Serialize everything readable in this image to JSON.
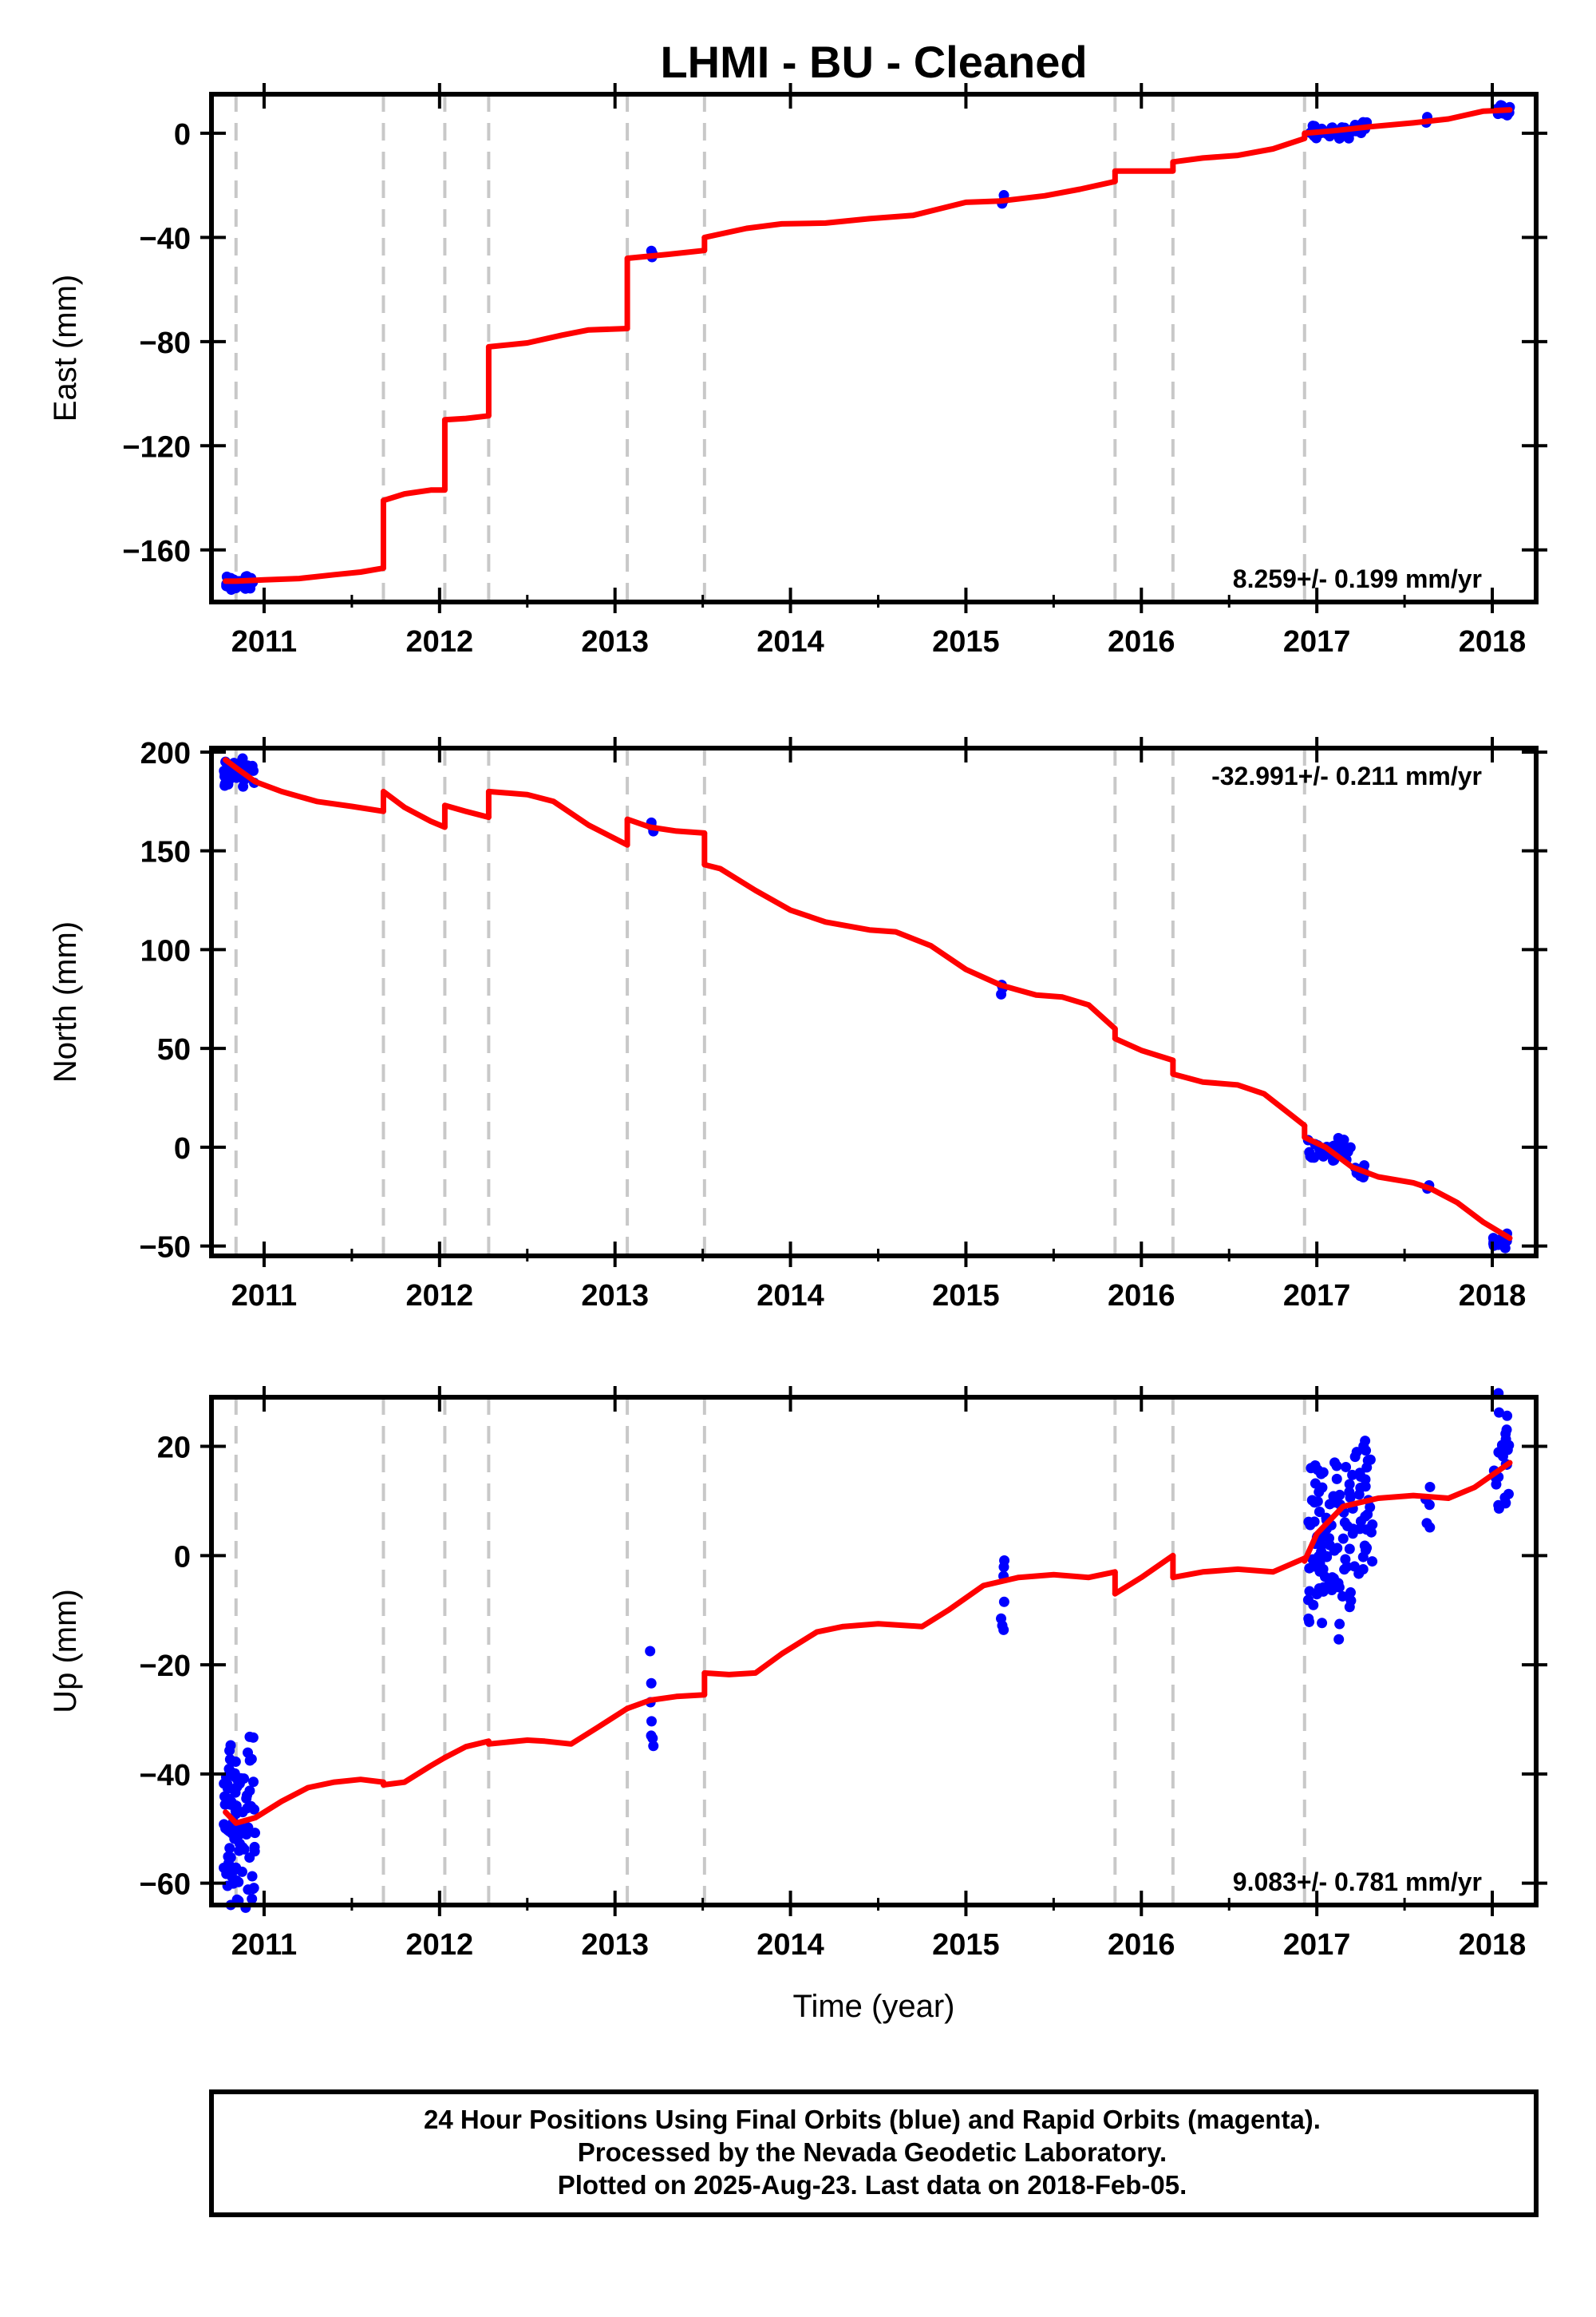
{
  "title": "LHMI  - BU - Cleaned",
  "colors": {
    "final_orbits": "#0000ff",
    "model": "#ff0000",
    "event_lines": "#c8c8c8",
    "frame": "#000000"
  },
  "footer": {
    "line1": "24 Hour Positions Using Final Orbits (blue) and Rapid Orbits (magenta).",
    "line2": "Processed by the Nevada Geodetic Laboratory.",
    "line3": "Plotted on 2025-Aug-23. Last data on 2018-Feb-05."
  },
  "chart_data": [
    {
      "type": "scatter",
      "panel": "east",
      "ylabel": "East (mm)",
      "xlabel": "",
      "xlim": [
        2010.7,
        2018.25
      ],
      "ylim": [
        -180,
        15
      ],
      "yticks": [
        0,
        -40,
        -80,
        -120,
        -160
      ],
      "xticks": [
        2011,
        2012,
        2013,
        2014,
        2015,
        2016,
        2017,
        2018
      ],
      "rate_text": "8.259+/- 0.199 mm/yr",
      "rate_position": "bottom-right",
      "event_lines": [
        2010.84,
        2011.68,
        2012.03,
        2012.28,
        2013.07,
        2013.51,
        2015.85,
        2016.18,
        2016.93
      ],
      "model_segments": [
        [
          [
            2010.78,
            -172
          ],
          [
            2010.84,
            -172
          ],
          [
            2011.0,
            -171.5
          ],
          [
            2011.2,
            -171
          ],
          [
            2011.4,
            -169.5
          ],
          [
            2011.55,
            -168.5
          ],
          [
            2011.68,
            -167
          ]
        ],
        [
          [
            2011.68,
            -141
          ],
          [
            2011.8,
            -138.5
          ],
          [
            2011.95,
            -137
          ],
          [
            2012.03,
            -137
          ]
        ],
        [
          [
            2012.03,
            -110
          ],
          [
            2012.15,
            -109.5
          ],
          [
            2012.28,
            -108.5
          ]
        ],
        [
          [
            2012.28,
            -82
          ],
          [
            2012.5,
            -80.5
          ],
          [
            2012.7,
            -77.5
          ],
          [
            2012.85,
            -75.5
          ],
          [
            2013.07,
            -75
          ]
        ],
        [
          [
            2013.07,
            -48
          ],
          [
            2013.3,
            -46.5
          ],
          [
            2013.51,
            -45
          ]
        ],
        [
          [
            2013.51,
            -40
          ],
          [
            2013.75,
            -36.5
          ],
          [
            2013.95,
            -34.8
          ],
          [
            2014.2,
            -34.5
          ],
          [
            2014.45,
            -32.8
          ],
          [
            2014.7,
            -31.5
          ],
          [
            2014.85,
            -29
          ],
          [
            2015.0,
            -26.5
          ],
          [
            2015.2,
            -26
          ],
          [
            2015.45,
            -24
          ],
          [
            2015.65,
            -21.5
          ],
          [
            2015.85,
            -18.5
          ]
        ],
        [
          [
            2015.85,
            -14.5
          ],
          [
            2016.18,
            -14.5
          ]
        ],
        [
          [
            2016.18,
            -11
          ],
          [
            2016.35,
            -9.5
          ],
          [
            2016.55,
            -8.5
          ],
          [
            2016.75,
            -6
          ],
          [
            2016.93,
            -2
          ]
        ],
        [
          [
            2016.93,
            0
          ],
          [
            2017.1,
            1
          ],
          [
            2017.3,
            2.5
          ],
          [
            2017.55,
            4
          ],
          [
            2017.75,
            5.5
          ],
          [
            2017.95,
            8.5
          ],
          [
            2018.1,
            9
          ]
        ]
      ],
      "point_clusters": [
        {
          "x": [
            2010.77,
            2010.94
          ],
          "y": [
            -175,
            -170
          ],
          "n": 30
        },
        {
          "x": [
            2013.2,
            2013.22
          ],
          "y": [
            -48,
            -45
          ],
          "n": 3
        },
        {
          "x": [
            2015.2,
            2015.22
          ],
          "y": [
            -27,
            -24
          ],
          "n": 3
        },
        {
          "x": [
            2016.95,
            2017.2
          ],
          "y": [
            -2,
            3
          ],
          "n": 30
        },
        {
          "x": [
            2017.2,
            2017.32
          ],
          "y": [
            0,
            5
          ],
          "n": 10
        },
        {
          "x": [
            2017.62,
            2017.65
          ],
          "y": [
            4,
            6
          ],
          "n": 2
        },
        {
          "x": [
            2018.0,
            2018.1
          ],
          "y": [
            7,
            11
          ],
          "n": 12
        }
      ]
    },
    {
      "type": "scatter",
      "panel": "north",
      "ylabel": "North (mm)",
      "xlabel": "",
      "xlim": [
        2010.7,
        2018.25
      ],
      "ylim": [
        -55,
        202
      ],
      "yticks": [
        200,
        150,
        100,
        50,
        0,
        -50
      ],
      "xticks": [
        2011,
        2012,
        2013,
        2014,
        2015,
        2016,
        2017,
        2018
      ],
      "rate_text": "-32.991+/- 0.211 mm/yr",
      "rate_position": "top-right",
      "event_lines": [
        2010.84,
        2011.68,
        2012.03,
        2012.28,
        2013.07,
        2013.51,
        2015.85,
        2016.18,
        2016.93
      ],
      "model_segments": [
        [
          [
            2010.78,
            196
          ],
          [
            2010.84,
            192
          ],
          [
            2010.95,
            185
          ],
          [
            2011.1,
            180
          ],
          [
            2011.3,
            175
          ],
          [
            2011.5,
            172.5
          ],
          [
            2011.68,
            170
          ]
        ],
        [
          [
            2011.68,
            180
          ],
          [
            2011.8,
            172
          ],
          [
            2011.95,
            165
          ],
          [
            2012.03,
            162
          ]
        ],
        [
          [
            2012.03,
            173
          ],
          [
            2012.15,
            170
          ],
          [
            2012.28,
            167
          ]
        ],
        [
          [
            2012.28,
            180
          ],
          [
            2012.5,
            178.5
          ],
          [
            2012.65,
            175
          ],
          [
            2012.85,
            163
          ],
          [
            2013.07,
            153
          ]
        ],
        [
          [
            2013.07,
            166
          ],
          [
            2013.2,
            162
          ],
          [
            2013.35,
            160
          ],
          [
            2013.51,
            159
          ]
        ],
        [
          [
            2013.51,
            143
          ],
          [
            2013.6,
            141
          ],
          [
            2013.8,
            130
          ],
          [
            2014.0,
            120
          ],
          [
            2014.2,
            114
          ],
          [
            2014.45,
            110
          ],
          [
            2014.6,
            109
          ],
          [
            2014.8,
            102
          ],
          [
            2015.0,
            90
          ],
          [
            2015.2,
            82
          ],
          [
            2015.4,
            77
          ],
          [
            2015.55,
            76
          ],
          [
            2015.7,
            72
          ],
          [
            2015.85,
            60
          ]
        ],
        [
          [
            2015.85,
            55
          ],
          [
            2016.0,
            49
          ],
          [
            2016.18,
            44
          ]
        ],
        [
          [
            2016.18,
            37
          ],
          [
            2016.35,
            33
          ],
          [
            2016.55,
            31.5
          ],
          [
            2016.7,
            27
          ],
          [
            2016.93,
            11
          ]
        ],
        [
          [
            2016.93,
            5
          ],
          [
            2017.05,
            0
          ],
          [
            2017.2,
            -10
          ],
          [
            2017.35,
            -15
          ],
          [
            2017.55,
            -18
          ],
          [
            2017.65,
            -21
          ],
          [
            2017.8,
            -28
          ],
          [
            2017.95,
            -38
          ],
          [
            2018.1,
            -46
          ]
        ]
      ],
      "point_clusters": [
        {
          "x": [
            2010.77,
            2010.95
          ],
          "y": [
            196,
            183
          ],
          "n": 30
        },
        {
          "x": [
            2013.2,
            2013.22
          ],
          "y": [
            160,
            165
          ],
          "n": 3
        },
        {
          "x": [
            2015.2,
            2015.22
          ],
          "y": [
            78,
            83
          ],
          "n": 3
        },
        {
          "x": [
            2016.95,
            2017.2
          ],
          "y": [
            3,
            -7
          ],
          "n": 30
        },
        {
          "x": [
            2017.2,
            2017.32
          ],
          "y": [
            -10,
            -15
          ],
          "n": 10
        },
        {
          "x": [
            2017.62,
            2017.65
          ],
          "y": [
            -19,
            -21
          ],
          "n": 2
        },
        {
          "x": [
            2018.0,
            2018.1
          ],
          "y": [
            -44,
            -50
          ],
          "n": 12
        }
      ]
    },
    {
      "type": "scatter",
      "panel": "up",
      "ylabel": "Up (mm)",
      "xlabel": "Time (year)",
      "xlim": [
        2010.7,
        2018.25
      ],
      "ylim": [
        -64,
        29
      ],
      "yticks": [
        20,
        0,
        -20,
        -40,
        -60
      ],
      "xticks": [
        2011,
        2012,
        2013,
        2014,
        2015,
        2016,
        2017,
        2018
      ],
      "rate_text": "9.083+/- 0.781 mm/yr",
      "rate_position": "bottom-right",
      "event_lines": [
        2010.84,
        2011.68,
        2012.03,
        2012.28,
        2013.07,
        2013.51,
        2015.85,
        2016.18,
        2016.93
      ],
      "model_segments": [
        [
          [
            2010.78,
            -47
          ],
          [
            2010.84,
            -49
          ],
          [
            2010.95,
            -48
          ],
          [
            2011.1,
            -45
          ],
          [
            2011.25,
            -42.5
          ],
          [
            2011.4,
            -41.5
          ],
          [
            2011.55,
            -41
          ],
          [
            2011.68,
            -41.5
          ]
        ],
        [
          [
            2011.68,
            -42
          ],
          [
            2011.8,
            -41.5
          ],
          [
            2011.95,
            -38.5
          ],
          [
            2012.03,
            -37
          ]
        ],
        [
          [
            2012.03,
            -37
          ],
          [
            2012.15,
            -35
          ],
          [
            2012.28,
            -34
          ]
        ],
        [
          [
            2012.28,
            -34.5
          ],
          [
            2012.5,
            -33.8
          ],
          [
            2012.6,
            -34
          ],
          [
            2012.75,
            -34.5
          ],
          [
            2012.9,
            -31.5
          ],
          [
            2013.07,
            -28
          ]
        ],
        [
          [
            2013.07,
            -28
          ],
          [
            2013.2,
            -26.5
          ],
          [
            2013.35,
            -25.8
          ],
          [
            2013.51,
            -25.5
          ]
        ],
        [
          [
            2013.51,
            -21.5
          ],
          [
            2013.65,
            -21.8
          ],
          [
            2013.8,
            -21.5
          ],
          [
            2013.95,
            -18
          ],
          [
            2014.15,
            -14
          ],
          [
            2014.3,
            -13
          ],
          [
            2014.5,
            -12.5
          ],
          [
            2014.75,
            -13
          ],
          [
            2014.9,
            -10
          ],
          [
            2015.1,
            -5.5
          ],
          [
            2015.3,
            -4
          ],
          [
            2015.5,
            -3.5
          ],
          [
            2015.7,
            -4
          ],
          [
            2015.85,
            -3
          ]
        ],
        [
          [
            2015.85,
            -7
          ],
          [
            2016.0,
            -4
          ],
          [
            2016.18,
            0
          ]
        ],
        [
          [
            2016.18,
            -4
          ],
          [
            2016.35,
            -3
          ],
          [
            2016.55,
            -2.5
          ],
          [
            2016.75,
            -3
          ],
          [
            2016.93,
            -0.5
          ]
        ],
        [
          [
            2016.93,
            -1
          ],
          [
            2017.0,
            4
          ],
          [
            2017.15,
            9
          ],
          [
            2017.35,
            10.5
          ],
          [
            2017.55,
            11
          ],
          [
            2017.75,
            10.5
          ],
          [
            2017.9,
            12.5
          ],
          [
            2018.1,
            17
          ]
        ]
      ],
      "point_clusters": [
        {
          "x": [
            2010.77,
            2010.95
          ],
          "y": [
            -62,
            -36
          ],
          "n": 90
        },
        {
          "x": [
            2013.2,
            2013.22
          ],
          "y": [
            -38,
            -20
          ],
          "n": 7
        },
        {
          "x": [
            2015.2,
            2015.22
          ],
          "y": [
            -15,
            1
          ],
          "n": 7
        },
        {
          "x": [
            2016.95,
            2017.2
          ],
          "y": [
            -11,
            16
          ],
          "n": 90
        },
        {
          "x": [
            2017.2,
            2017.33
          ],
          "y": [
            -3,
            20
          ],
          "n": 35
        },
        {
          "x": [
            2017.62,
            2017.65
          ],
          "y": [
            5,
            12
          ],
          "n": 5
        },
        {
          "x": [
            2018.0,
            2018.1
          ],
          "y": [
            8,
            28
          ],
          "n": 25
        }
      ]
    }
  ]
}
